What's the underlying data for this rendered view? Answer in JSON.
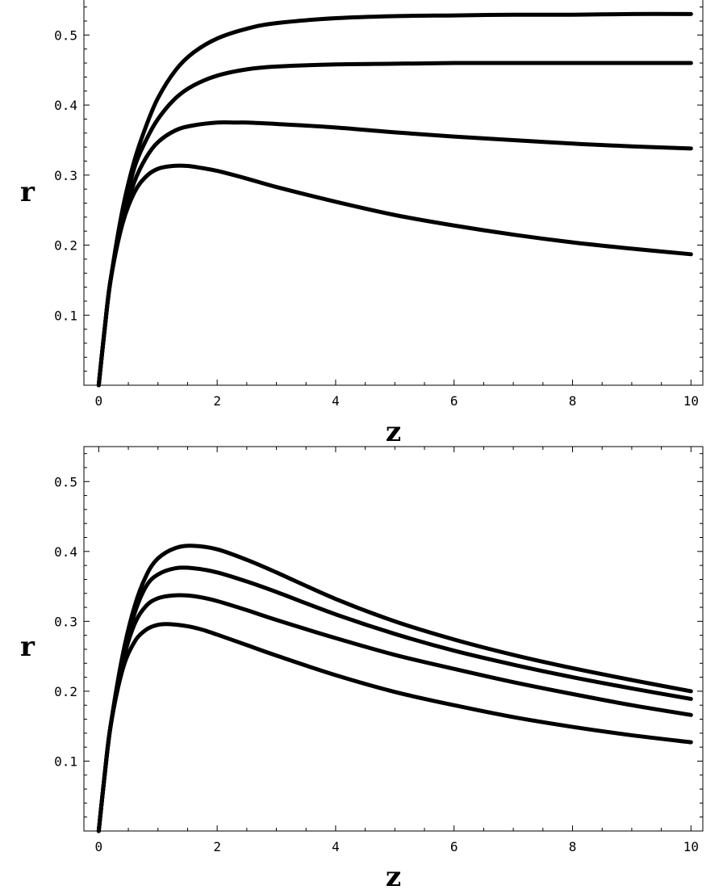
{
  "chart_data": [
    {
      "type": "line",
      "title": "",
      "xlabel": "z",
      "ylabel": "r",
      "xlim": [
        -0.25,
        10.2
      ],
      "ylim": [
        0,
        0.55
      ],
      "x_ticks": [
        0,
        2,
        4,
        6,
        8,
        10
      ],
      "x_tick_labels": [
        "0",
        "2",
        "4",
        "6",
        "8",
        "10"
      ],
      "y_ticks": [
        0.1,
        0.2,
        0.3,
        0.4,
        0.5
      ],
      "y_tick_labels": [
        "0.1",
        "0.2",
        "0.3",
        "0.4",
        "0.5"
      ],
      "grid": false,
      "legend": "none",
      "line_color": "#000000",
      "series": [
        {
          "x": [
            0,
            0.1,
            0.2,
            0.4,
            0.6,
            0.8,
            1.0,
            1.3,
            1.6,
            2.0,
            2.5,
            3,
            4,
            5,
            6,
            7,
            8,
            9,
            10
          ],
          "y": [
            0,
            0.08,
            0.15,
            0.25,
            0.32,
            0.37,
            0.41,
            0.45,
            0.475,
            0.495,
            0.509,
            0.517,
            0.524,
            0.527,
            0.528,
            0.529,
            0.529,
            0.53,
            0.53
          ]
        },
        {
          "x": [
            0,
            0.1,
            0.2,
            0.4,
            0.6,
            0.8,
            1.0,
            1.3,
            1.6,
            2.0,
            2.5,
            3,
            4,
            5,
            6,
            7,
            8,
            9,
            10
          ],
          "y": [
            0,
            0.08,
            0.15,
            0.24,
            0.31,
            0.35,
            0.38,
            0.41,
            0.428,
            0.442,
            0.451,
            0.455,
            0.458,
            0.459,
            0.46,
            0.46,
            0.46,
            0.46,
            0.46
          ]
        },
        {
          "x": [
            0,
            0.1,
            0.2,
            0.4,
            0.6,
            0.8,
            1.0,
            1.3,
            1.6,
            2.0,
            2.3,
            2.5,
            3,
            4,
            5,
            6,
            7,
            8,
            9,
            10
          ],
          "y": [
            0,
            0.08,
            0.15,
            0.235,
            0.29,
            0.325,
            0.347,
            0.364,
            0.371,
            0.375,
            0.375,
            0.375,
            0.373,
            0.368,
            0.361,
            0.355,
            0.35,
            0.345,
            0.341,
            0.338
          ]
        },
        {
          "x": [
            0,
            0.1,
            0.2,
            0.4,
            0.6,
            0.8,
            1.0,
            1.25,
            1.5,
            1.75,
            2.0,
            2.5,
            3,
            4,
            5,
            6,
            7,
            8,
            9,
            10
          ],
          "y": [
            0,
            0.08,
            0.15,
            0.23,
            0.275,
            0.298,
            0.309,
            0.313,
            0.313,
            0.31,
            0.306,
            0.295,
            0.283,
            0.262,
            0.243,
            0.228,
            0.215,
            0.204,
            0.195,
            0.187
          ]
        }
      ]
    },
    {
      "type": "line",
      "title": "",
      "xlabel": "z",
      "ylabel": "r",
      "xlim": [
        -0.25,
        10.2
      ],
      "ylim": [
        0,
        0.55
      ],
      "x_ticks": [
        0,
        2,
        4,
        6,
        8,
        10
      ],
      "x_tick_labels": [
        "0",
        "2",
        "4",
        "6",
        "8",
        "10"
      ],
      "y_ticks": [
        0.1,
        0.2,
        0.3,
        0.4,
        0.5
      ],
      "y_tick_labels": [
        "0.1",
        "0.2",
        "0.3",
        "0.4",
        "0.5"
      ],
      "grid": false,
      "legend": "none",
      "line_color": "#000000",
      "series": [
        {
          "x": [
            0,
            0.1,
            0.2,
            0.4,
            0.6,
            0.8,
            1.0,
            1.3,
            1.6,
            2.0,
            2.5,
            3,
            4,
            5,
            6,
            7,
            8,
            9,
            10
          ],
          "y": [
            0,
            0.08,
            0.15,
            0.25,
            0.32,
            0.365,
            0.39,
            0.405,
            0.408,
            0.403,
            0.388,
            0.37,
            0.332,
            0.3,
            0.274,
            0.252,
            0.233,
            0.216,
            0.2
          ]
        },
        {
          "x": [
            0,
            0.1,
            0.2,
            0.4,
            0.6,
            0.8,
            1.0,
            1.3,
            1.6,
            2.0,
            2.5,
            3,
            4,
            5,
            6,
            7,
            8,
            9,
            10
          ],
          "y": [
            0,
            0.08,
            0.15,
            0.245,
            0.31,
            0.35,
            0.367,
            0.376,
            0.376,
            0.37,
            0.357,
            0.342,
            0.31,
            0.282,
            0.258,
            0.238,
            0.22,
            0.204,
            0.189
          ]
        },
        {
          "x": [
            0,
            0.1,
            0.2,
            0.4,
            0.6,
            0.8,
            1.0,
            1.25,
            1.5,
            1.75,
            2.0,
            2.5,
            3,
            4,
            5,
            6,
            7,
            8,
            9,
            10
          ],
          "y": [
            0,
            0.08,
            0.15,
            0.24,
            0.295,
            0.322,
            0.333,
            0.337,
            0.337,
            0.334,
            0.329,
            0.316,
            0.302,
            0.276,
            0.252,
            0.232,
            0.213,
            0.196,
            0.18,
            0.166
          ]
        },
        {
          "x": [
            0,
            0.1,
            0.2,
            0.4,
            0.6,
            0.8,
            1.0,
            1.2,
            1.5,
            1.75,
            2.0,
            2.5,
            3,
            4,
            5,
            6,
            7,
            8,
            9,
            10
          ],
          "y": [
            0,
            0.08,
            0.15,
            0.23,
            0.27,
            0.288,
            0.295,
            0.296,
            0.293,
            0.288,
            0.281,
            0.266,
            0.251,
            0.223,
            0.199,
            0.18,
            0.163,
            0.149,
            0.137,
            0.127
          ]
        }
      ]
    }
  ]
}
